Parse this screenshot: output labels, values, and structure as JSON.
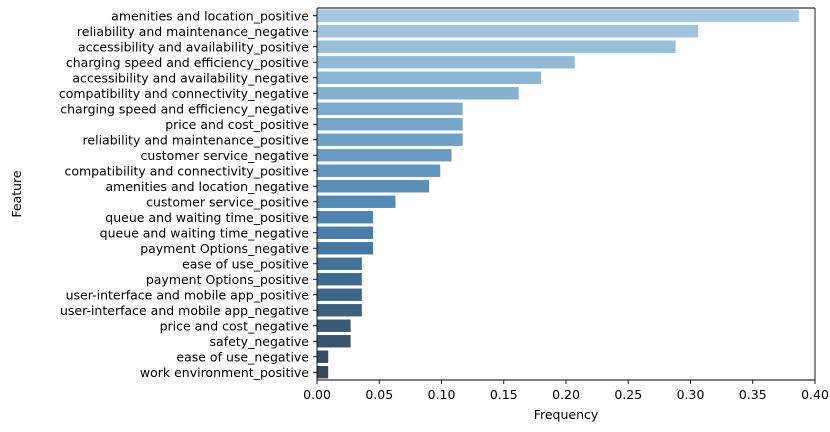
{
  "chart_data": {
    "type": "bar",
    "orientation": "horizontal",
    "title": "",
    "xlabel": "Frequency",
    "ylabel": "Feature",
    "xlim": [
      0,
      0.4
    ],
    "xticks": [
      "0.00",
      "0.05",
      "0.10",
      "0.15",
      "0.20",
      "0.25",
      "0.30",
      "0.35",
      "0.40"
    ],
    "grid": false,
    "legend": "none",
    "categories": [
      "amenities and location_positive",
      "reliability and maintenance_negative",
      "accessibility and availability_positive",
      "charging speed and efficiency_positive",
      "accessibility and availability_negative",
      "compatibility and connectivity_negative",
      "charging speed and efficiency_negative",
      "price and cost_positive",
      "reliability and maintenance_positive",
      "customer service_negative",
      "compatibility and connectivity_positive",
      "amenities and location_negative",
      "customer service_positive",
      "queue and waiting time_positive",
      "queue and waiting time_negative",
      "payment Options_negative",
      "ease of use_positive",
      "payment Options_positive",
      "user-interface and mobile app_positive",
      "user-interface and mobile app_negative",
      "price and cost_negative",
      "safety_negative",
      "ease of use_negative",
      "work environment_positive"
    ],
    "values": [
      0.387,
      0.306,
      0.288,
      0.207,
      0.18,
      0.162,
      0.117,
      0.117,
      0.117,
      0.108,
      0.099,
      0.09,
      0.063,
      0.045,
      0.045,
      0.045,
      0.036,
      0.036,
      0.036,
      0.036,
      0.027,
      0.027,
      0.009,
      0.009
    ],
    "colors": [
      "#a4c8e0",
      "#9ec3dd",
      "#98bfda",
      "#91bad7",
      "#8bb5d4",
      "#85b0d0",
      "#7eaacd",
      "#77a5c9",
      "#70a0c5",
      "#699ac1",
      "#6295bd",
      "#5b8fb8",
      "#548ab4",
      "#4e84ae",
      "#4a7ea7",
      "#4678a0",
      "#437198",
      "#406b90",
      "#3e6587",
      "#3c5f7e",
      "#3a5975",
      "#39536c",
      "#384d63",
      "#37475a"
    ]
  }
}
